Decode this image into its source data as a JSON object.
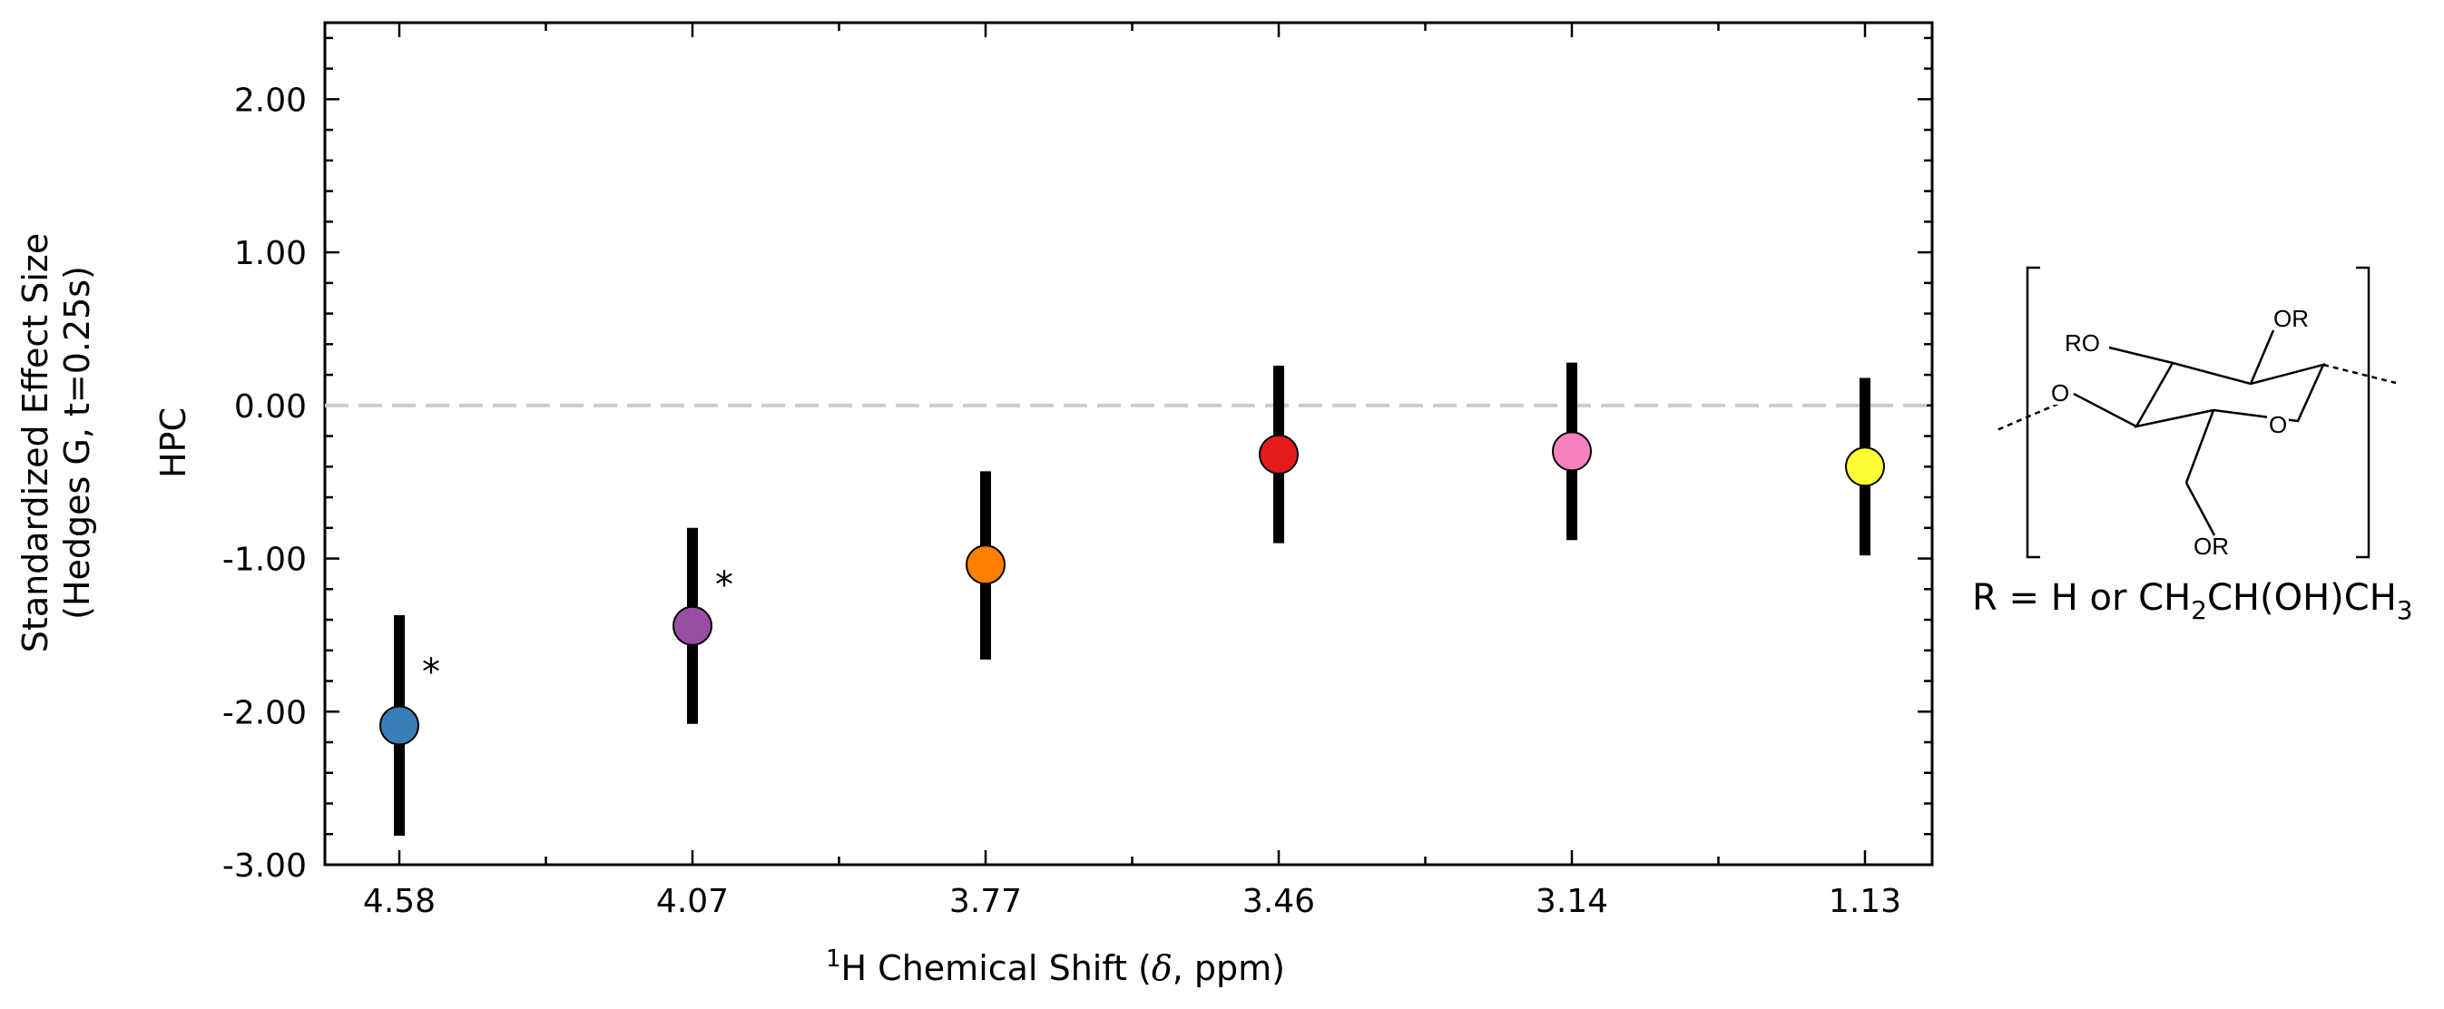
{
  "chart_data": {
    "type": "scatter",
    "categories": [
      "4.58",
      "4.07",
      "3.77",
      "3.46",
      "3.14",
      "1.13"
    ],
    "values": [
      -2.09,
      -1.44,
      -1.04,
      -0.32,
      -0.3,
      -0.4
    ],
    "error_low": [
      -2.81,
      -2.08,
      -1.66,
      -0.9,
      -0.88,
      -0.98
    ],
    "error_high": [
      -1.37,
      -0.8,
      -0.43,
      0.26,
      0.28,
      0.18
    ],
    "significant": [
      true,
      true,
      false,
      false,
      false,
      false
    ],
    "point_colors": [
      "#377eb8",
      "#984ea3",
      "#ff7f00",
      "#e41a1c",
      "#f781bf",
      "#ffff33"
    ],
    "significance_marker": "*",
    "xlabel": {
      "sup": "1",
      "main": "H Chemical Shift (",
      "delta": "δ",
      "rest": ", ppm)"
    },
    "ylabel_outer_line1": "Standardized Effect Size",
    "ylabel_outer_line2": "(Hedges G, t=0.25s)",
    "ylabel_inner": "HPC",
    "yticks": [
      -3.0,
      -2.0,
      -1.0,
      0.0,
      1.0,
      2.0
    ],
    "ytick_labels": [
      "-3.00",
      "-2.00",
      "-1.00",
      "0.00",
      "1.00",
      "2.00"
    ],
    "ylim": [
      -3.0,
      2.5
    ],
    "reference_line": 0,
    "grid": false,
    "error_bar_color": "#000000",
    "reference_line_color": "#cccccc"
  },
  "structure": {
    "substituent_labels": [
      "RO",
      "OR",
      "O",
      "O",
      "OR"
    ],
    "r_definition": {
      "prefix": "R = H or CH",
      "sub1": "2",
      "mid": "CH(OH)CH",
      "sub2": "3"
    }
  }
}
